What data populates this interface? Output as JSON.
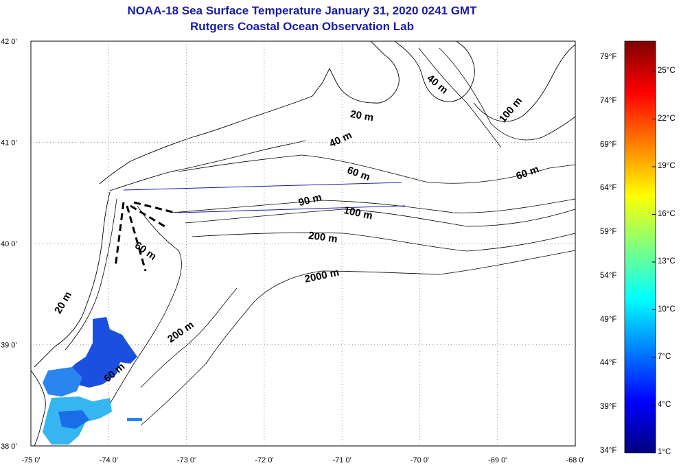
{
  "header": {
    "title_line1": "NOAA-18 Sea Surface Temperature January 31, 2020 0241 GMT",
    "title_line2": "Rutgers Coastal Ocean Observation Lab"
  },
  "map": {
    "lon_range": [
      -75,
      -68
    ],
    "lat_range": [
      38,
      42
    ],
    "lon_ticks": [
      {
        "value": -75,
        "label": "-75 0'"
      },
      {
        "value": -74,
        "label": "-74 0'"
      },
      {
        "value": -73,
        "label": "-73 0'"
      },
      {
        "value": -72,
        "label": "-72 0'"
      },
      {
        "value": -71,
        "label": "-71 0'"
      },
      {
        "value": -70,
        "label": "-70 0'"
      },
      {
        "value": -69,
        "label": "-69 0'"
      },
      {
        "value": -68,
        "label": "-68 0'"
      }
    ],
    "lat_ticks": [
      {
        "value": 42,
        "label": "42 0'"
      },
      {
        "value": 41,
        "label": "41 0'"
      },
      {
        "value": 40,
        "label": "40 0'"
      },
      {
        "value": 39,
        "label": "39 0'"
      },
      {
        "value": 38,
        "label": "38 0'"
      }
    ],
    "grid": "dotted",
    "contour_labels": [
      {
        "text": "40 m",
        "lon": -69.8,
        "lat": 41.55,
        "rot": 40
      },
      {
        "text": "100 m",
        "lon": -68.8,
        "lat": 41.3,
        "rot": -50
      },
      {
        "text": "20 m",
        "lon": -70.75,
        "lat": 41.23,
        "rot": 10
      },
      {
        "text": "40 m",
        "lon": -71.0,
        "lat": 41.0,
        "rot": -25
      },
      {
        "text": "60 m",
        "lon": -70.8,
        "lat": 40.66,
        "rot": 20
      },
      {
        "text": "60 m",
        "lon": -68.6,
        "lat": 40.67,
        "rot": -20
      },
      {
        "text": "90 m",
        "lon": -71.4,
        "lat": 40.4,
        "rot": -15
      },
      {
        "text": "100 m",
        "lon": -70.8,
        "lat": 40.27,
        "rot": 12
      },
      {
        "text": "200 m",
        "lon": -71.25,
        "lat": 40.03,
        "rot": 8
      },
      {
        "text": "60 m",
        "lon": -73.55,
        "lat": 39.9,
        "rot": 35
      },
      {
        "text": "2000 m",
        "lon": -71.25,
        "lat": 39.65,
        "rot": -12
      },
      {
        "text": "20 m",
        "lon": -74.55,
        "lat": 39.4,
        "rot": -60
      },
      {
        "text": "200 m",
        "lon": -73.05,
        "lat": 39.1,
        "rot": -35
      },
      {
        "text": "60 m",
        "lon": -73.9,
        "lat": 38.7,
        "rot": -40
      }
    ],
    "colors": {
      "land_outline": "#000000",
      "transect_line": "#1a1aa8",
      "sst_dark": "#1a4fe0",
      "sst_mid": "#2a86ee",
      "sst_light": "#35b6f0"
    }
  },
  "colorbar": {
    "fahrenheit_labels": [
      "79°F",
      "74°F",
      "69°F",
      "64°F",
      "59°F",
      "54°F",
      "49°F",
      "44°F",
      "39°F",
      "34°F"
    ],
    "celsius_labels": [
      "25°C",
      "22°C",
      "19°C",
      "16°C",
      "13°C",
      "10°C",
      "7°C",
      "4°C",
      "1°C"
    ]
  }
}
